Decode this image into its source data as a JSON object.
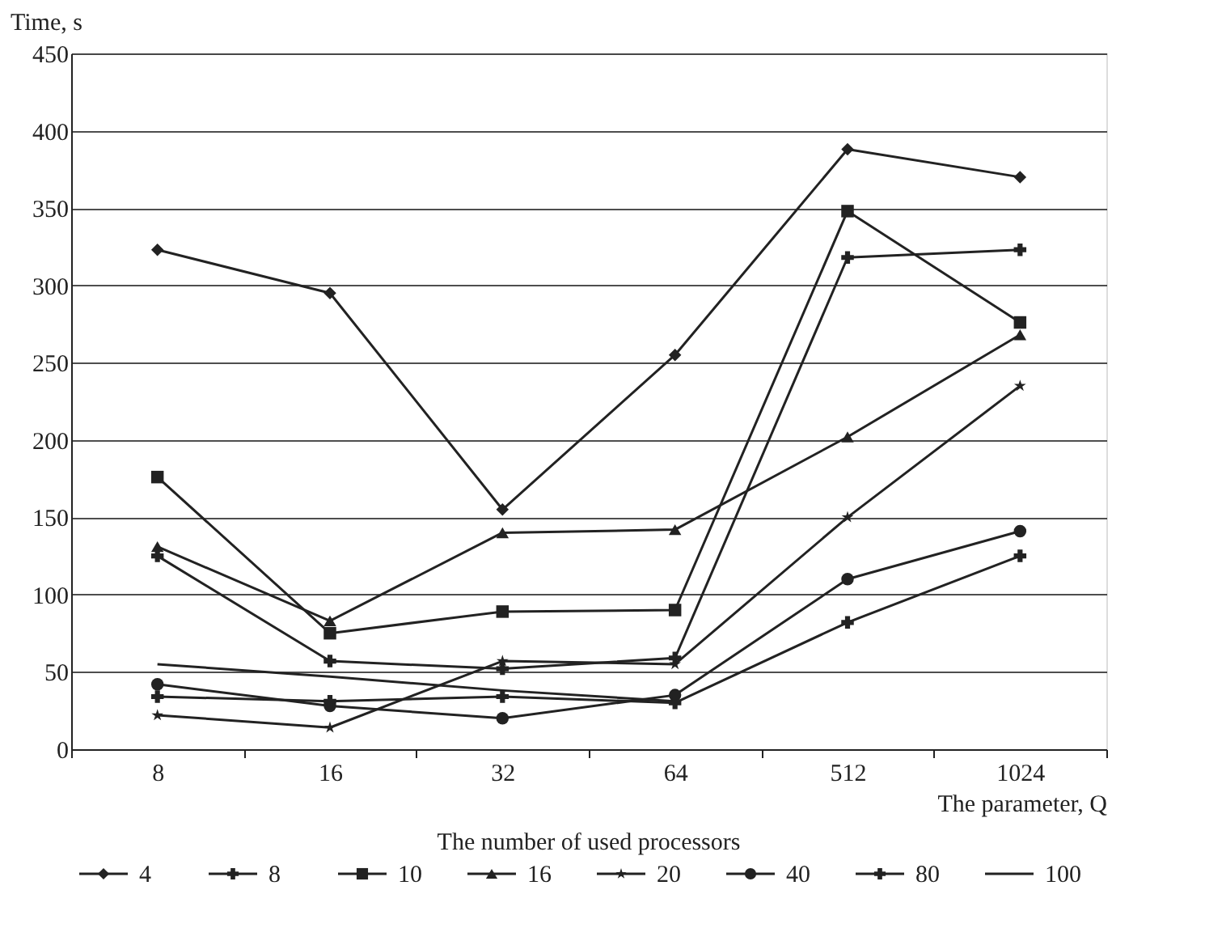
{
  "chart_data": {
    "type": "line",
    "xlabel": "The parameter, Q",
    "ylabel": "Time, s",
    "legend_title": "The number of used processors",
    "categories": [
      "8",
      "16",
      "32",
      "64",
      "512",
      "1024"
    ],
    "ylim": [
      0,
      450
    ],
    "yticks": [
      0,
      50,
      100,
      150,
      200,
      250,
      300,
      350,
      400,
      450
    ],
    "grid": "y",
    "legend": "bottom",
    "line_style": "solid",
    "series": [
      {
        "name": "4",
        "color": "#222222",
        "marker": "diamond",
        "values": [
          323,
          295,
          155,
          255,
          388,
          370
        ]
      },
      {
        "name": "8",
        "color": "#222222",
        "marker": "cross",
        "values": [
          125,
          57,
          52,
          59,
          318,
          323
        ]
      },
      {
        "name": "10",
        "color": "#222222",
        "marker": "square",
        "values": [
          176,
          75,
          89,
          90,
          348,
          276
        ]
      },
      {
        "name": "16",
        "color": "#222222",
        "marker": "triangle",
        "values": [
          131,
          83,
          140,
          142,
          202,
          268
        ]
      },
      {
        "name": "20",
        "color": "#222222",
        "marker": "star",
        "values": [
          22,
          14,
          57,
          55,
          150,
          235
        ]
      },
      {
        "name": "40",
        "color": "#222222",
        "marker": "circle",
        "values": [
          42,
          28,
          20,
          35,
          110,
          141
        ]
      },
      {
        "name": "80",
        "color": "#222222",
        "marker": "cross",
        "values": [
          34,
          31,
          34,
          30,
          82,
          125
        ]
      },
      {
        "name": "100",
        "color": "#222222",
        "marker": "none",
        "values": [
          55,
          47,
          38,
          31,
          null,
          null
        ]
      }
    ]
  }
}
